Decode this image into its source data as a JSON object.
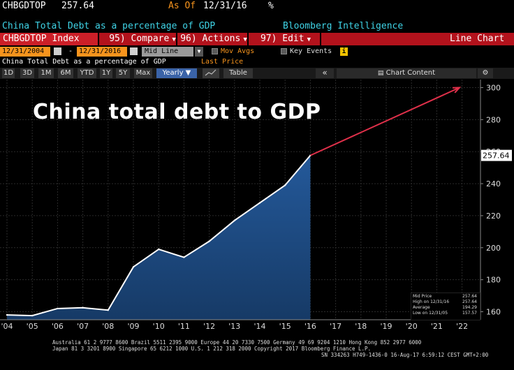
{
  "header": {
    "ticker": "CHBGDTOP",
    "value": "257.64",
    "as_of_label": "As Of",
    "as_of_date": "12/31/16",
    "percent_sign": "%",
    "description": "China Total Debt as a percentage of GDP",
    "source": "Bloomberg Intelligence"
  },
  "command_bar": {
    "index_label": "CHBGDTOP Index",
    "compare_label": "95) Compare",
    "actions_label": "96) Actions",
    "edit_label": "97) Edit",
    "chart_type_label": "Line Chart"
  },
  "date_controls": {
    "start_date": "12/31/2004",
    "end_date": "12/31/2016",
    "mode": "Mid Line",
    "mov_avgs_label": "Mov Avgs",
    "key_events_label": "Key Events",
    "info_icon": "i"
  },
  "info_row": {
    "series_label": "China Total Debt as a percentage of GDP",
    "last_price_label": "Last Price"
  },
  "tabs": {
    "periods": [
      "1D",
      "3D",
      "1M",
      "6M",
      "YTD",
      "1Y",
      "5Y",
      "Max"
    ],
    "yearly_label": "Yearly ▼",
    "table_label": "Table",
    "collapse_label": "«",
    "chart_content_label": "Chart Content",
    "gear_icon": "gear-icon",
    "chart_icon": "line-chart-icon"
  },
  "overlay_title": "China total debt to GDP",
  "chart_data": {
    "type": "area",
    "x": [
      "'04",
      "'05",
      "'06",
      "'07",
      "'08",
      "'09",
      "'10",
      "'11",
      "'12",
      "'13",
      "'14",
      "'15",
      "'16"
    ],
    "values": [
      158,
      157.57,
      162,
      162.5,
      161,
      188,
      199,
      194,
      204,
      217,
      228,
      239,
      257.64
    ],
    "x_ticks": [
      "'04",
      "'05",
      "'06",
      "'07",
      "'08",
      "'09",
      "'10",
      "'11",
      "'12",
      "'13",
      "'14",
      "'15",
      "'16",
      "'17",
      "'18",
      "'19",
      "'20",
      "'21",
      "'22"
    ],
    "y_ticks": [
      160,
      180,
      200,
      220,
      240,
      260,
      280,
      300
    ],
    "ylim": [
      155,
      305
    ],
    "last_value_label": "257.64",
    "projection": {
      "from_x": "'16",
      "from_y": 257.64,
      "to_x": "'21.9",
      "to_y": 300
    },
    "colors": {
      "line": "#ffffff",
      "fill": "#1f4f88",
      "arrow": "#e0304a",
      "value_tag": "#ffffff"
    },
    "grid": true
  },
  "legend": {
    "items": [
      {
        "label": "Mid Price",
        "value": "257.64"
      },
      {
        "label": "High on 12/31/16",
        "value": "257.64"
      },
      {
        "label": "Average",
        "value": "194.29"
      },
      {
        "label": "Low on 12/31/05",
        "value": "157.57"
      }
    ]
  },
  "footer": {
    "line1": "Australia 61 2 9777 8600 Brazil 5511 2395 9000 Europe 44 20 7330 7500 Germany 49 69 9204 1210 Hong Kong 852 2977 6000",
    "line2": "Japan 81 3 3201 8900        Singapore 65 6212 1000        U.S. 1 212 318 2000              Copyright 2017 Bloomberg Finance L.P.",
    "line3": "SN 334263 H749-1436-0 16-Aug-17  6:59:12 CEST GMT+2:00"
  }
}
